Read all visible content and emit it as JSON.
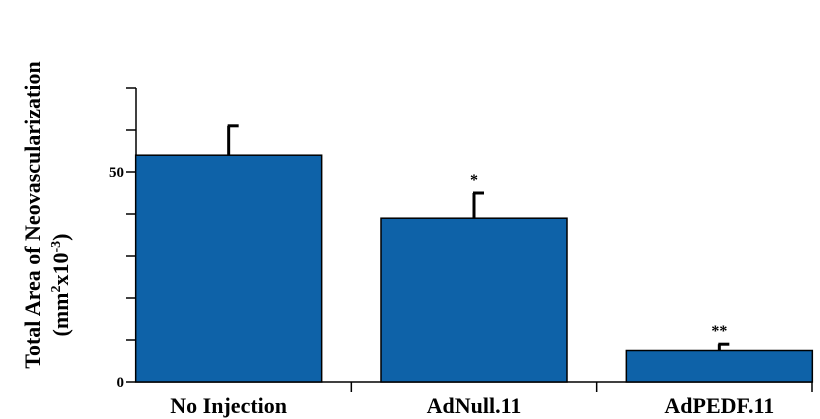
{
  "chart_data": {
    "type": "bar",
    "categories": [
      "No Injection",
      "AdNull.11",
      "AdPEDF.11"
    ],
    "values": [
      54,
      39,
      7.5
    ],
    "errors": [
      7,
      6,
      1.5
    ],
    "annotations": [
      "",
      "*",
      "**"
    ],
    "ylabel_line1": "Total Area of Neovascularization",
    "ylabel_line2_prefix": "(mm",
    "ylabel_line2_sup1": "2",
    "ylabel_line2_mid": "x10",
    "ylabel_line2_sup2": "-3",
    "ylabel_line2_suffix": ")",
    "ylim": [
      0,
      70
    ],
    "yticks": [
      0,
      10,
      20,
      30,
      40,
      50,
      60,
      70
    ],
    "ytick_labels": [
      {
        "value": 0,
        "label": "0"
      },
      {
        "value": 50,
        "label": "50"
      }
    ],
    "bar_color": "#0e62a8",
    "grid": false
  }
}
